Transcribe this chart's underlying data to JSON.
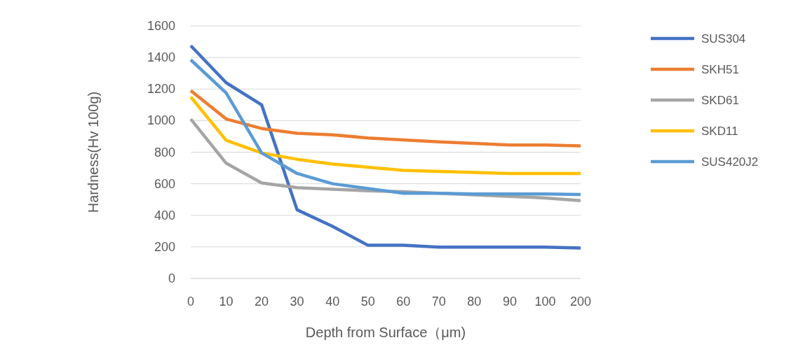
{
  "chart_data": {
    "type": "line",
    "xlabel": "Depth from Surface（μm)",
    "ylabel": "Hardness(Hv 100g)",
    "categories": [
      "0",
      "10",
      "20",
      "30",
      "40",
      "50",
      "60",
      "70",
      "80",
      "90",
      "100",
      "200"
    ],
    "series": [
      {
        "name": "SUS304",
        "color": "#4472c4",
        "values": [
          1475,
          1240,
          1100,
          435,
          330,
          210,
          210,
          198,
          198,
          198,
          198,
          193
        ]
      },
      {
        "name": "SKH51",
        "color": "#ed7d31",
        "values": [
          1190,
          1010,
          950,
          920,
          910,
          890,
          878,
          865,
          855,
          845,
          845,
          840
        ]
      },
      {
        "name": "SKD61",
        "color": "#a5a5a5",
        "values": [
          1010,
          730,
          605,
          575,
          565,
          555,
          550,
          540,
          530,
          520,
          510,
          493
        ]
      },
      {
        "name": "SKD11",
        "color": "#ffc000",
        "values": [
          1150,
          875,
          795,
          755,
          725,
          705,
          685,
          678,
          672,
          665,
          665,
          665
        ]
      },
      {
        "name": "SUS420J2",
        "color": "#5b9bd5",
        "values": [
          1385,
          1175,
          795,
          665,
          600,
          570,
          540,
          540,
          535,
          535,
          535,
          532
        ]
      }
    ],
    "ylim": [
      0,
      1600
    ],
    "yticks": [
      0,
      200,
      400,
      600,
      800,
      1000,
      1200,
      1400,
      1600
    ],
    "grid": "y",
    "legend": "right",
    "marker": "none",
    "line_style": "solid"
  }
}
